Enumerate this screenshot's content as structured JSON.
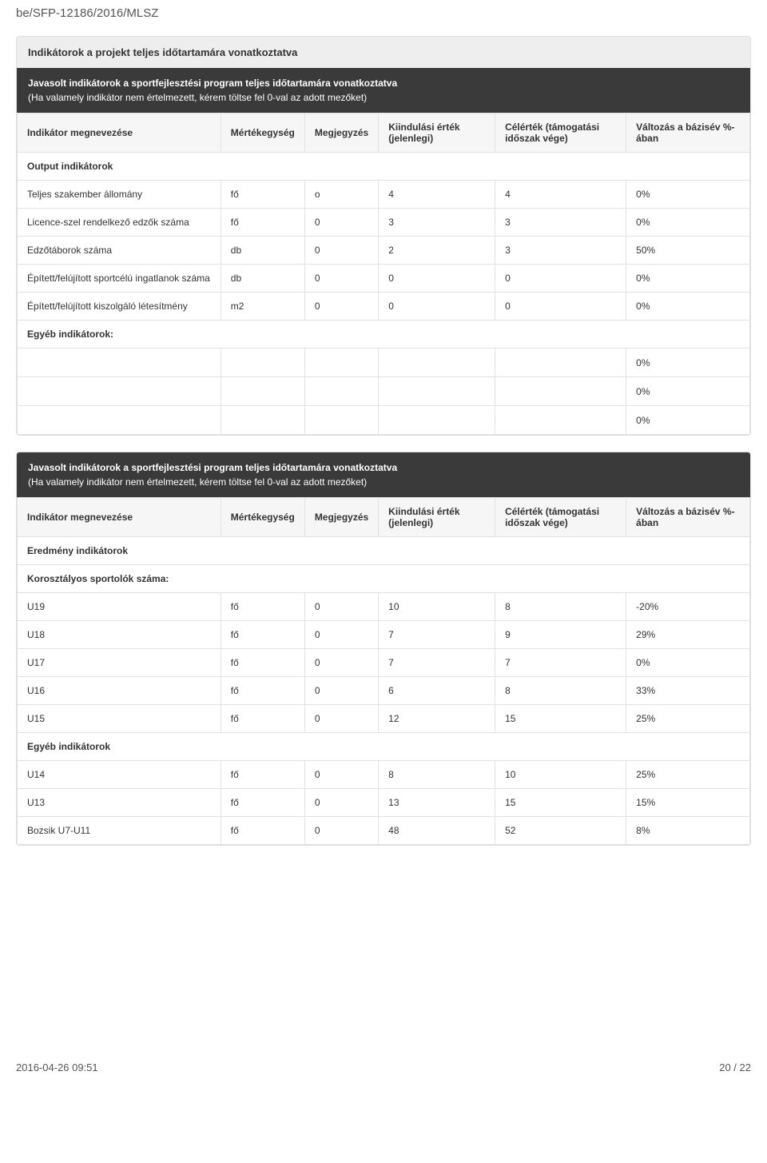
{
  "doc_id": "be/SFP-12186/2016/MLSZ",
  "panel1": {
    "header": "Indikátorok a projekt teljes időtartamára vonatkoztatva",
    "banner_title": "Javasolt indikátorok a sportfejlesztési program teljes időtartamára vonatkoztatva",
    "banner_sub": "(Ha valamely indikátor nem értelmezett, kérem töltse fel 0-val az adott mezőket)",
    "columns": {
      "c1": "Indikátor megnevezése",
      "c2": "Mértékegység",
      "c3": "Megjegyzés",
      "c4": "Kiindulási érték (jelenlegi)",
      "c5": "Célérték (támogatási időszak vége)",
      "c6": "Változás a bázisév %-ában"
    },
    "section1": "Output indikátorok",
    "rows1": [
      {
        "name": "Teljes szakember állomány",
        "unit": "fő",
        "note": "o",
        "start": "4",
        "target": "4",
        "change": "0%"
      },
      {
        "name": "Licence-szel rendelkező edzők száma",
        "unit": "fő",
        "note": "0",
        "start": "3",
        "target": "3",
        "change": "0%"
      },
      {
        "name": "Edzőtáborok száma",
        "unit": "db",
        "note": "0",
        "start": "2",
        "target": "3",
        "change": "50%"
      },
      {
        "name": "Épített/felújított sportcélú ingatlanok száma",
        "unit": "db",
        "note": "0",
        "start": "0",
        "target": "0",
        "change": "0%"
      },
      {
        "name": "Épített/felújított kiszolgáló létesítmény",
        "unit": "m2",
        "note": "0",
        "start": "0",
        "target": "0",
        "change": "0%"
      }
    ],
    "section2": "Egyéb indikátorok:",
    "empties": [
      "0%",
      "0%",
      "0%"
    ]
  },
  "panel2": {
    "banner_title": "Javasolt indikátorok a sportfejlesztési program teljes időtartamára vonatkoztatva",
    "banner_sub": "(Ha valamely indikátor nem értelmezett, kérem töltse fel 0-val az adott mezőket)",
    "columns": {
      "c1": "Indikátor megnevezése",
      "c2": "Mértékegység",
      "c3": "Megjegyzés",
      "c4": "Kiindulási érték (jelenlegi)",
      "c5": "Célérték (támogatási időszak vége)",
      "c6": "Változás a bázisév %-ában"
    },
    "section1": "Eredmény indikátorok",
    "section2": "Korosztályos sportolók száma:",
    "rows1": [
      {
        "name": "U19",
        "unit": "fő",
        "note": "0",
        "start": "10",
        "target": "8",
        "change": "-20%"
      },
      {
        "name": "U18",
        "unit": "fő",
        "note": "0",
        "start": "7",
        "target": "9",
        "change": "29%"
      },
      {
        "name": "U17",
        "unit": "fő",
        "note": "0",
        "start": "7",
        "target": "7",
        "change": "0%"
      },
      {
        "name": "U16",
        "unit": "fő",
        "note": "0",
        "start": "6",
        "target": "8",
        "change": "33%"
      },
      {
        "name": "U15",
        "unit": "fő",
        "note": "0",
        "start": "12",
        "target": "15",
        "change": "25%"
      }
    ],
    "section3": "Egyéb indikátorok",
    "rows2": [
      {
        "name": "U14",
        "unit": "fő",
        "note": "0",
        "start": "8",
        "target": "10",
        "change": "25%"
      },
      {
        "name": "U13",
        "unit": "fő",
        "note": "0",
        "start": "13",
        "target": "15",
        "change": "15%"
      },
      {
        "name": "Bozsik U7-U11",
        "unit": "fő",
        "note": "0",
        "start": "48",
        "target": "52",
        "change": "8%"
      }
    ]
  },
  "footer": {
    "left": "2016-04-26 09:51",
    "right": "20 / 22"
  },
  "col_widths": [
    "28%",
    "11%",
    "10%",
    "16%",
    "18%",
    "17%"
  ]
}
